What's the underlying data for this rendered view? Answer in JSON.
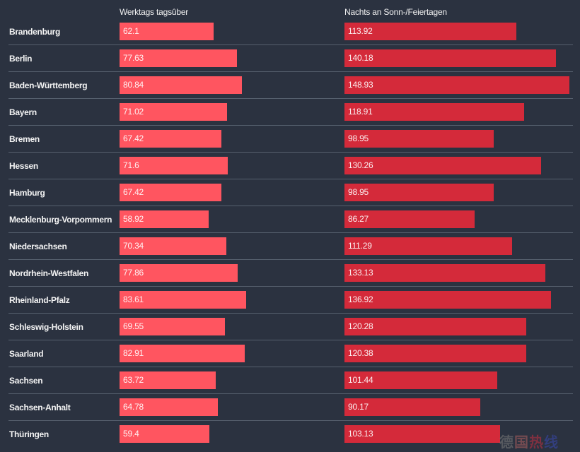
{
  "chart_data": {
    "type": "bar",
    "orientation": "horizontal",
    "title": "",
    "categories": [
      "Brandenburg",
      "Berlin",
      "Baden-Württemberg",
      "Bayern",
      "Bremen",
      "Hessen",
      "Hamburg",
      "Mecklenburg-Vorpommern",
      "Niedersachsen",
      "Nordrhein-Westfalen",
      "Rheinland-Pfalz",
      "Schleswig-Holstein",
      "Saarland",
      "Sachsen",
      "Sachsen-Anhalt",
      "Thüringen"
    ],
    "series": [
      {
        "name": "Werktags tagsûber",
        "color": "#ff5560",
        "values": [
          62.1,
          77.63,
          80.84,
          71.02,
          67.42,
          71.6,
          67.42,
          58.92,
          70.34,
          77.86,
          83.61,
          69.55,
          82.91,
          63.72,
          64.78,
          59.4
        ],
        "labels": [
          "62.1",
          "77.63",
          "80.84",
          "71.02",
          "67.42",
          "71.6",
          "67.42",
          "58.92",
          "70.34",
          "77.86",
          "83.61",
          "69.55",
          "82.91",
          "63.72",
          "64.78",
          "59.4"
        ]
      },
      {
        "name": "Nachts an Sonn-/Feiertagen",
        "color": "#d42a3a",
        "values": [
          113.92,
          140.18,
          148.93,
          118.91,
          98.95,
          130.26,
          98.95,
          86.27,
          111.29,
          133.13,
          136.92,
          120.28,
          120.38,
          101.44,
          90.17,
          103.13
        ],
        "labels": [
          "113.92",
          "140.18",
          "148.93",
          "118.91",
          "98.95",
          "130.26",
          "98.95",
          "86.27",
          "111.29",
          "133.13",
          "136.92",
          "120.28",
          "120.38",
          "101.44",
          "90.17",
          "103.13"
        ]
      }
    ],
    "xlabel": "",
    "ylabel": "",
    "grid": false,
    "legend": "top"
  },
  "watermark": "德国热线"
}
